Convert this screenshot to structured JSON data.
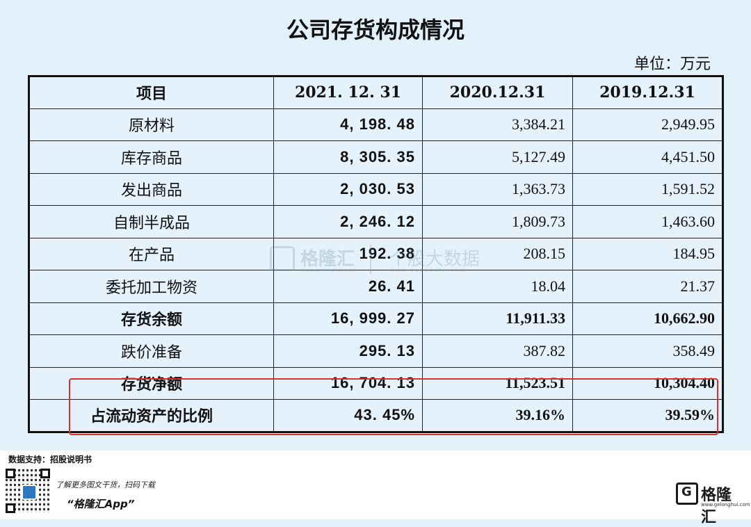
{
  "title": "公司存货构成情况",
  "unit": "单位：万元",
  "table": {
    "headers": [
      "项目",
      "2021. 12. 31",
      "2020.12.31",
      "2019.12.31"
    ],
    "rows": [
      {
        "item": "原材料",
        "y2021": "4, 198. 48",
        "y2020": "3,384.21",
        "y2019": "2,949.95"
      },
      {
        "item": "库存商品",
        "y2021": "8, 305. 35",
        "y2020": "5,127.49",
        "y2019": "4,451.50"
      },
      {
        "item": "发出商品",
        "y2021": "2, 030. 53",
        "y2020": "1,363.73",
        "y2019": "1,591.52"
      },
      {
        "item": "自制半成品",
        "y2021": "2, 246. 12",
        "y2020": "1,809.73",
        "y2019": "1,463.60"
      },
      {
        "item": "在产品",
        "y2021": "192. 38",
        "y2020": "208.15",
        "y2019": "184.95"
      },
      {
        "item": "委托加工物资",
        "y2021": "26. 41",
        "y2020": "18.04",
        "y2019": "21.37"
      },
      {
        "item": "存货余额",
        "y2021": "16, 999. 27",
        "y2020": "11,911.33",
        "y2019": "10,662.90"
      },
      {
        "item": "跌价准备",
        "y2021": "295. 13",
        "y2020": "387.82",
        "y2019": "358.49"
      },
      {
        "item": "存货净额",
        "y2021": "16, 704. 13",
        "y2020": "11,523.51",
        "y2019": "10,304.40"
      },
      {
        "item": "占流动资产的比例",
        "y2021": "43. 45%",
        "y2020": "39.16%",
        "y2019": "39.59%"
      }
    ]
  },
  "watermark": {
    "brand": "格隆汇",
    "brand_url": "www.gelonghui.com",
    "product": "个股大数据",
    "product_url": "www.gogudata.com"
  },
  "footer": {
    "source": "数据支持：招股说明书",
    "promo": "了解更多图文干货，扫码下载",
    "app": "“格隆汇App”",
    "logo_name": "格隆汇",
    "logo_url": "www.gelonghui.com"
  },
  "colors": {
    "background": "#e3f1fb",
    "highlight_border": "#d9302c",
    "logo_blue": "#2b78c5"
  }
}
